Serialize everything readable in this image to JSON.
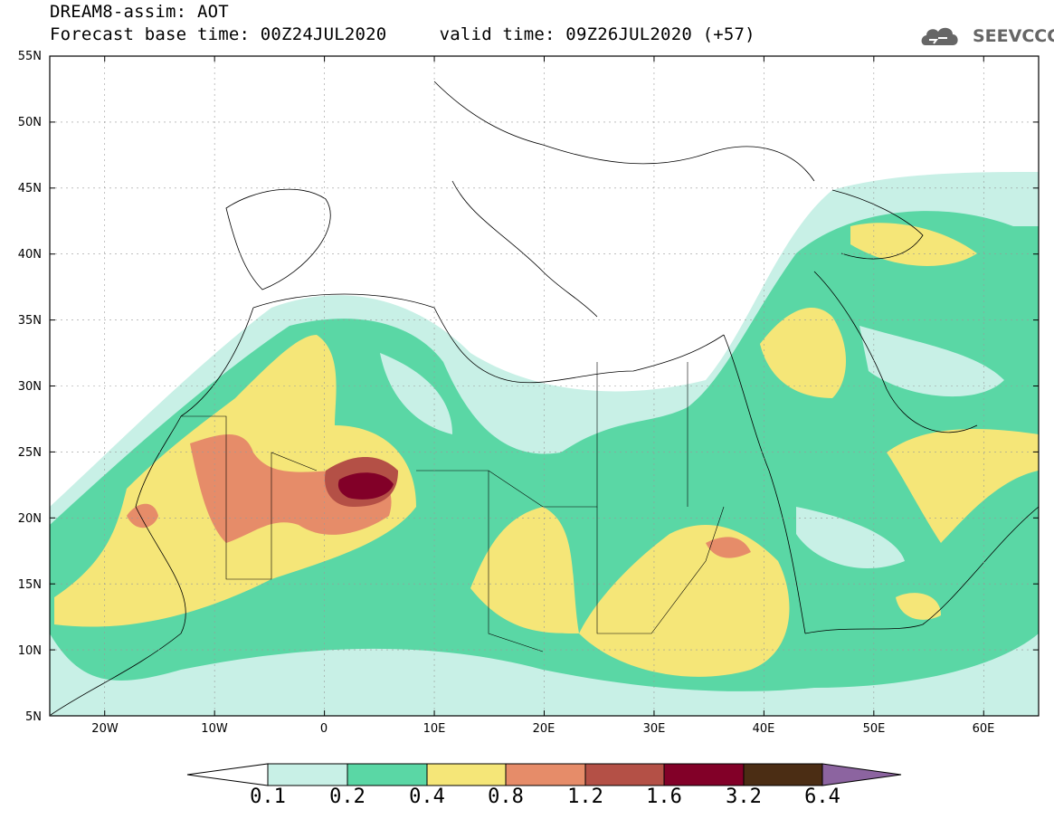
{
  "title": {
    "line1": "DREAM8-assim: AOT",
    "line2": "Forecast base time: 00Z24JUL2020     valid time: 09Z26JUL2020 (+57)"
  },
  "logo": {
    "text": "SEEVCCC",
    "icon": "cloud-icon"
  },
  "map": {
    "lon_range": [
      -25,
      65
    ],
    "lat_range": [
      5,
      55
    ],
    "lat_ticks": [
      "55N",
      "50N",
      "45N",
      "40N",
      "35N",
      "30N",
      "25N",
      "20N",
      "15N",
      "10N",
      "5N"
    ],
    "lon_ticks": [
      "20W",
      "10W",
      "0",
      "10E",
      "20E",
      "30E",
      "40E",
      "50E",
      "60E"
    ]
  },
  "colorbar": {
    "labels": [
      "0.1",
      "0.2",
      "0.4",
      "0.8",
      "1.2",
      "1.6",
      "3.2",
      "6.4"
    ],
    "colors": [
      "#c8f0e6",
      "#5ad7a5",
      "#f5e678",
      "#e68c69",
      "#b45046",
      "#820028",
      "#4b2d14",
      "#8c64a0"
    ]
  }
}
